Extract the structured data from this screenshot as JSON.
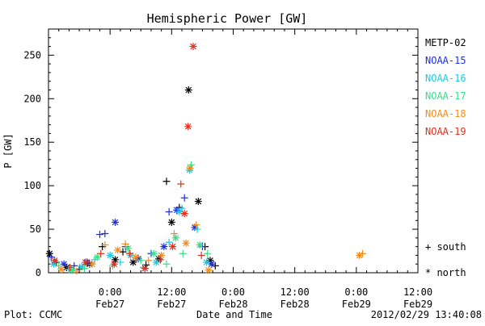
{
  "chart_data": {
    "type": "scatter",
    "title": "Hemispheric Power [GW]",
    "ylabel": "P [GW]",
    "xlabel": "Date and Time",
    "ylim": [
      0,
      280
    ],
    "y_ticks": [
      0,
      50,
      100,
      150,
      200,
      250
    ],
    "xlim_hours": [
      -12,
      60
    ],
    "x_ticks": [
      {
        "hour": 0,
        "time": "0:00",
        "date": "Feb27"
      },
      {
        "hour": 12,
        "time": "12:00",
        "date": "Feb27"
      },
      {
        "hour": 24,
        "time": "0:00",
        "date": "Feb28"
      },
      {
        "hour": 36,
        "time": "12:00",
        "date": "Feb28"
      },
      {
        "hour": 48,
        "time": "0:00",
        "date": "Feb29"
      },
      {
        "hour": 60,
        "time": "12:00",
        "date": "Feb29"
      }
    ],
    "legend": [
      {
        "name": "METP-02",
        "color": "#000000"
      },
      {
        "name": "NOAA-15",
        "color": "#1f2ee0"
      },
      {
        "name": "NOAA-16",
        "color": "#1ec8e6"
      },
      {
        "name": "NOAA-17",
        "color": "#3ddc8c"
      },
      {
        "name": "NOAA-18",
        "color": "#f28c1c"
      },
      {
        "name": "NOAA-19",
        "color": "#e0301e"
      }
    ],
    "markers": {
      "south": "+ south",
      "north": "* north"
    },
    "series": [
      {
        "name": "METP-02",
        "color": "#000000",
        "points": [
          {
            "x": -11.8,
            "y": 22,
            "m": "*"
          },
          {
            "x": -10.5,
            "y": 12,
            "m": "+"
          },
          {
            "x": -8.5,
            "y": 6,
            "m": "*"
          },
          {
            "x": -6,
            "y": 4,
            "m": "+"
          },
          {
            "x": -4,
            "y": 10,
            "m": "*"
          },
          {
            "x": -1.5,
            "y": 30,
            "m": "+"
          },
          {
            "x": 1,
            "y": 15,
            "m": "*"
          },
          {
            "x": 2.5,
            "y": 24,
            "m": "+"
          },
          {
            "x": 4.5,
            "y": 12,
            "m": "*"
          },
          {
            "x": 7,
            "y": 9,
            "m": "+"
          },
          {
            "x": 9.5,
            "y": 16,
            "m": "*"
          },
          {
            "x": 11,
            "y": 105,
            "m": "+"
          },
          {
            "x": 12,
            "y": 58,
            "m": "*"
          },
          {
            "x": 13.5,
            "y": 75,
            "m": "+"
          },
          {
            "x": 15.3,
            "y": 210,
            "m": "*"
          },
          {
            "x": 17.2,
            "y": 82,
            "m": "*"
          },
          {
            "x": 18.5,
            "y": 30,
            "m": "+"
          },
          {
            "x": 19.5,
            "y": 14,
            "m": "*"
          },
          {
            "x": 20.5,
            "y": 8,
            "m": "+"
          }
        ]
      },
      {
        "name": "NOAA-15",
        "color": "#1f2ee0",
        "points": [
          {
            "x": -11.5,
            "y": 18,
            "m": "+"
          },
          {
            "x": -9,
            "y": 10,
            "m": "*"
          },
          {
            "x": -7,
            "y": 8,
            "m": "+"
          },
          {
            "x": -4.5,
            "y": 12,
            "m": "*"
          },
          {
            "x": -2,
            "y": 44,
            "m": "+"
          },
          {
            "x": -1,
            "y": 45,
            "m": "+"
          },
          {
            "x": 1,
            "y": 58,
            "m": "*"
          },
          {
            "x": 3,
            "y": 30,
            "m": "+"
          },
          {
            "x": 5.5,
            "y": 16,
            "m": "*"
          },
          {
            "x": 8,
            "y": 22,
            "m": "+"
          },
          {
            "x": 10.5,
            "y": 30,
            "m": "*"
          },
          {
            "x": 11.5,
            "y": 70,
            "m": "+"
          },
          {
            "x": 13,
            "y": 72,
            "m": "*"
          },
          {
            "x": 14.5,
            "y": 86,
            "m": "+"
          },
          {
            "x": 16.5,
            "y": 52,
            "m": "*"
          },
          {
            "x": 18,
            "y": 30,
            "m": "+"
          },
          {
            "x": 19.8,
            "y": 10,
            "m": "*"
          }
        ]
      },
      {
        "name": "NOAA-16",
        "color": "#1ec8e6",
        "points": [
          {
            "x": -11,
            "y": 10,
            "m": "*"
          },
          {
            "x": -8,
            "y": 4,
            "m": "+"
          },
          {
            "x": -5.5,
            "y": 7,
            "m": "*"
          },
          {
            "x": -3,
            "y": 15,
            "m": "+"
          },
          {
            "x": 0,
            "y": 20,
            "m": "*"
          },
          {
            "x": 2,
            "y": 12,
            "m": "+"
          },
          {
            "x": 4,
            "y": 20,
            "m": "*"
          },
          {
            "x": 6.5,
            "y": 6,
            "m": "+"
          },
          {
            "x": 9,
            "y": 12,
            "m": "*"
          },
          {
            "x": 11.5,
            "y": 35,
            "m": "+"
          },
          {
            "x": 13.5,
            "y": 70,
            "m": "*"
          },
          {
            "x": 14,
            "y": 74,
            "m": "+"
          },
          {
            "x": 15.5,
            "y": 118,
            "m": "*"
          },
          {
            "x": 17,
            "y": 50,
            "m": "+"
          },
          {
            "x": 18.8,
            "y": 12,
            "m": "*"
          }
        ]
      },
      {
        "name": "NOAA-17",
        "color": "#3ddc8c",
        "points": [
          {
            "x": -10,
            "y": 8,
            "m": "+"
          },
          {
            "x": -7.5,
            "y": 3,
            "m": "*"
          },
          {
            "x": -5,
            "y": 5,
            "m": "+"
          },
          {
            "x": -2.5,
            "y": 18,
            "m": "*"
          },
          {
            "x": 0.5,
            "y": 8,
            "m": "+"
          },
          {
            "x": 3.5,
            "y": 28,
            "m": "*"
          },
          {
            "x": 6,
            "y": 14,
            "m": "+"
          },
          {
            "x": 8.5,
            "y": 22,
            "m": "*"
          },
          {
            "x": 11,
            "y": 10,
            "m": "+"
          },
          {
            "x": 12.8,
            "y": 40,
            "m": "*"
          },
          {
            "x": 14.2,
            "y": 22,
            "m": "+"
          },
          {
            "x": 15.8,
            "y": 124,
            "m": "+"
          },
          {
            "x": 17.5,
            "y": 32,
            "m": "*"
          },
          {
            "x": 19,
            "y": 22,
            "m": "+"
          }
        ]
      },
      {
        "name": "NOAA-18",
        "color": "#f28c1c",
        "points": [
          {
            "x": -9.5,
            "y": 4,
            "m": "*"
          },
          {
            "x": -6.5,
            "y": 2,
            "m": "+"
          },
          {
            "x": -3.5,
            "y": 10,
            "m": "*"
          },
          {
            "x": -1,
            "y": 32,
            "m": "+"
          },
          {
            "x": 1.5,
            "y": 26,
            "m": "*"
          },
          {
            "x": 3,
            "y": 33,
            "m": "+"
          },
          {
            "x": 5,
            "y": 18,
            "m": "*"
          },
          {
            "x": 7.5,
            "y": 14,
            "m": "+"
          },
          {
            "x": 10,
            "y": 20,
            "m": "*"
          },
          {
            "x": 12.5,
            "y": 45,
            "m": "+"
          },
          {
            "x": 14.8,
            "y": 34,
            "m": "*"
          },
          {
            "x": 15.6,
            "y": 120,
            "m": "*"
          },
          {
            "x": 16.8,
            "y": 55,
            "m": "+"
          },
          {
            "x": 19.2,
            "y": 3,
            "m": "*"
          },
          {
            "x": 48.6,
            "y": 20,
            "m": "*"
          },
          {
            "x": 49.2,
            "y": 22,
            "m": "+"
          }
        ]
      },
      {
        "name": "NOAA-19",
        "color": "#e0301e",
        "points": [
          {
            "x": -10.8,
            "y": 14,
            "m": "*"
          },
          {
            "x": -7.8,
            "y": 6,
            "m": "+"
          },
          {
            "x": -4.8,
            "y": 12,
            "m": "*"
          },
          {
            "x": -1.8,
            "y": 22,
            "m": "+"
          },
          {
            "x": 0.8,
            "y": 10,
            "m": "*"
          },
          {
            "x": 3.8,
            "y": 22,
            "m": "+"
          },
          {
            "x": 6.8,
            "y": 5,
            "m": "*"
          },
          {
            "x": 9.8,
            "y": 15,
            "m": "+"
          },
          {
            "x": 12.2,
            "y": 30,
            "m": "*"
          },
          {
            "x": 13.8,
            "y": 102,
            "m": "+"
          },
          {
            "x": 14.5,
            "y": 68,
            "m": "*"
          },
          {
            "x": 15.2,
            "y": 168,
            "m": "*"
          },
          {
            "x": 16.2,
            "y": 260,
            "m": "*"
          },
          {
            "x": 17.8,
            "y": 20,
            "m": "+"
          }
        ]
      }
    ]
  },
  "footer": {
    "plot_credit": "Plot: CCMC",
    "timestamp": "2012/02/29 13:40:08"
  }
}
